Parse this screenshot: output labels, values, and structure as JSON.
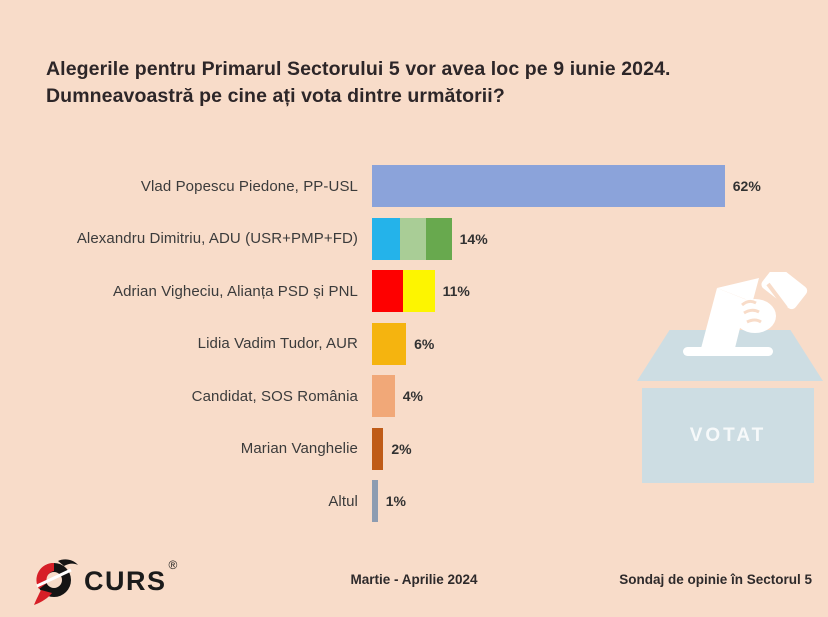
{
  "title": {
    "line1": "Alegerile pentru Primarul Sectorului 5 vor avea loc pe 9 iunie 2024.",
    "line2": "Dumneavoastră pe cine ați vota dintre următorii?"
  },
  "chart_data": {
    "type": "bar",
    "orientation": "horizontal",
    "title": "Alegerile pentru Primarul Sectorului 5 vor avea loc pe 9 iunie 2024. Dumneavoastră pe cine ați vota dintre următorii?",
    "categories": [
      "Vlad Popescu Piedone, PP-USL",
      "Alexandru Dimitriu, ADU (USR+PMP+FD)",
      "Adrian Vigheciu, Alianța PSD și PNL",
      "Lidia Vadim Tudor, AUR",
      "Candidat, SOS România",
      "Marian Vanghelie",
      "Altul"
    ],
    "values": [
      62,
      14,
      11,
      6,
      4,
      2,
      1
    ],
    "value_labels": [
      "62%",
      "14%",
      "11%",
      "6%",
      "4%",
      "2%",
      "1%"
    ],
    "segments": [
      [
        {
          "color": "#8ba3da",
          "value": 62
        }
      ],
      [
        {
          "color": "#24b3ea",
          "value": 5
        },
        {
          "color": "#a9cd96",
          "value": 4.5
        },
        {
          "color": "#68a94e",
          "value": 4.5
        }
      ],
      [
        {
          "color": "#fe0000",
          "value": 5.5
        },
        {
          "color": "#fdf500",
          "value": 5.5
        }
      ],
      [
        {
          "color": "#f5b40f",
          "value": 6
        }
      ],
      [
        {
          "color": "#f1a878",
          "value": 4
        }
      ],
      [
        {
          "color": "#bf5b17",
          "value": 2
        }
      ],
      [
        {
          "color": "#8d9cb1",
          "value": 1
        }
      ]
    ],
    "xlim": [
      0,
      65
    ],
    "grid": false,
    "legend": null
  },
  "ballot_box": {
    "label": "VOTAT",
    "box_color": "#cddde3"
  },
  "footer": {
    "logo_text": "CURS",
    "registered_mark": "®",
    "period": "Martie - Aprilie 2024",
    "source": "Sondaj de opinie în Sectorul 5"
  },
  "colors": {
    "background": "#f8dcc9",
    "title_text": "#2d2628",
    "label_text": "#3b3b3b",
    "logo_red": "#d71f27",
    "logo_black": "#141414"
  }
}
